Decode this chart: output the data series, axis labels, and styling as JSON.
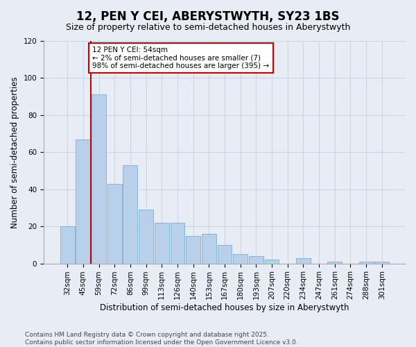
{
  "title": "12, PEN Y CEI, ABERYSTWYTH, SY23 1BS",
  "subtitle": "Size of property relative to semi-detached houses in Aberystwyth",
  "xlabel": "Distribution of semi-detached houses by size in Aberystwyth",
  "ylabel": "Number of semi-detached properties",
  "categories": [
    "32sqm",
    "45sqm",
    "59sqm",
    "72sqm",
    "86sqm",
    "99sqm",
    "113sqm",
    "126sqm",
    "140sqm",
    "153sqm",
    "167sqm",
    "180sqm",
    "193sqm",
    "207sqm",
    "220sqm",
    "234sqm",
    "247sqm",
    "261sqm",
    "274sqm",
    "288sqm",
    "301sqm"
  ],
  "values": [
    20,
    67,
    91,
    43,
    53,
    29,
    22,
    22,
    15,
    16,
    10,
    5,
    4,
    2,
    0,
    3,
    0,
    1,
    0,
    1,
    1
  ],
  "bar_color": "#b8d0ea",
  "bar_edge_color": "#7aafd4",
  "highlight_line_color": "#cc0000",
  "annotation_text": "12 PEN Y CEI: 54sqm\n← 2% of semi-detached houses are smaller (7)\n98% of semi-detached houses are larger (395) →",
  "annotation_box_color": "#ffffff",
  "annotation_box_edge_color": "#cc0000",
  "ylim": [
    0,
    120
  ],
  "yticks": [
    0,
    20,
    40,
    60,
    80,
    100,
    120
  ],
  "grid_color": "#c8d4e8",
  "background_color": "#e8edf5",
  "plot_background_color": "#e8edf5",
  "footer_text": "Contains HM Land Registry data © Crown copyright and database right 2025.\nContains public sector information licensed under the Open Government Licence v3.0.",
  "title_fontsize": 12,
  "subtitle_fontsize": 9,
  "axis_label_fontsize": 8.5,
  "tick_fontsize": 7.5,
  "annotation_fontsize": 7.5,
  "footer_fontsize": 6.5
}
